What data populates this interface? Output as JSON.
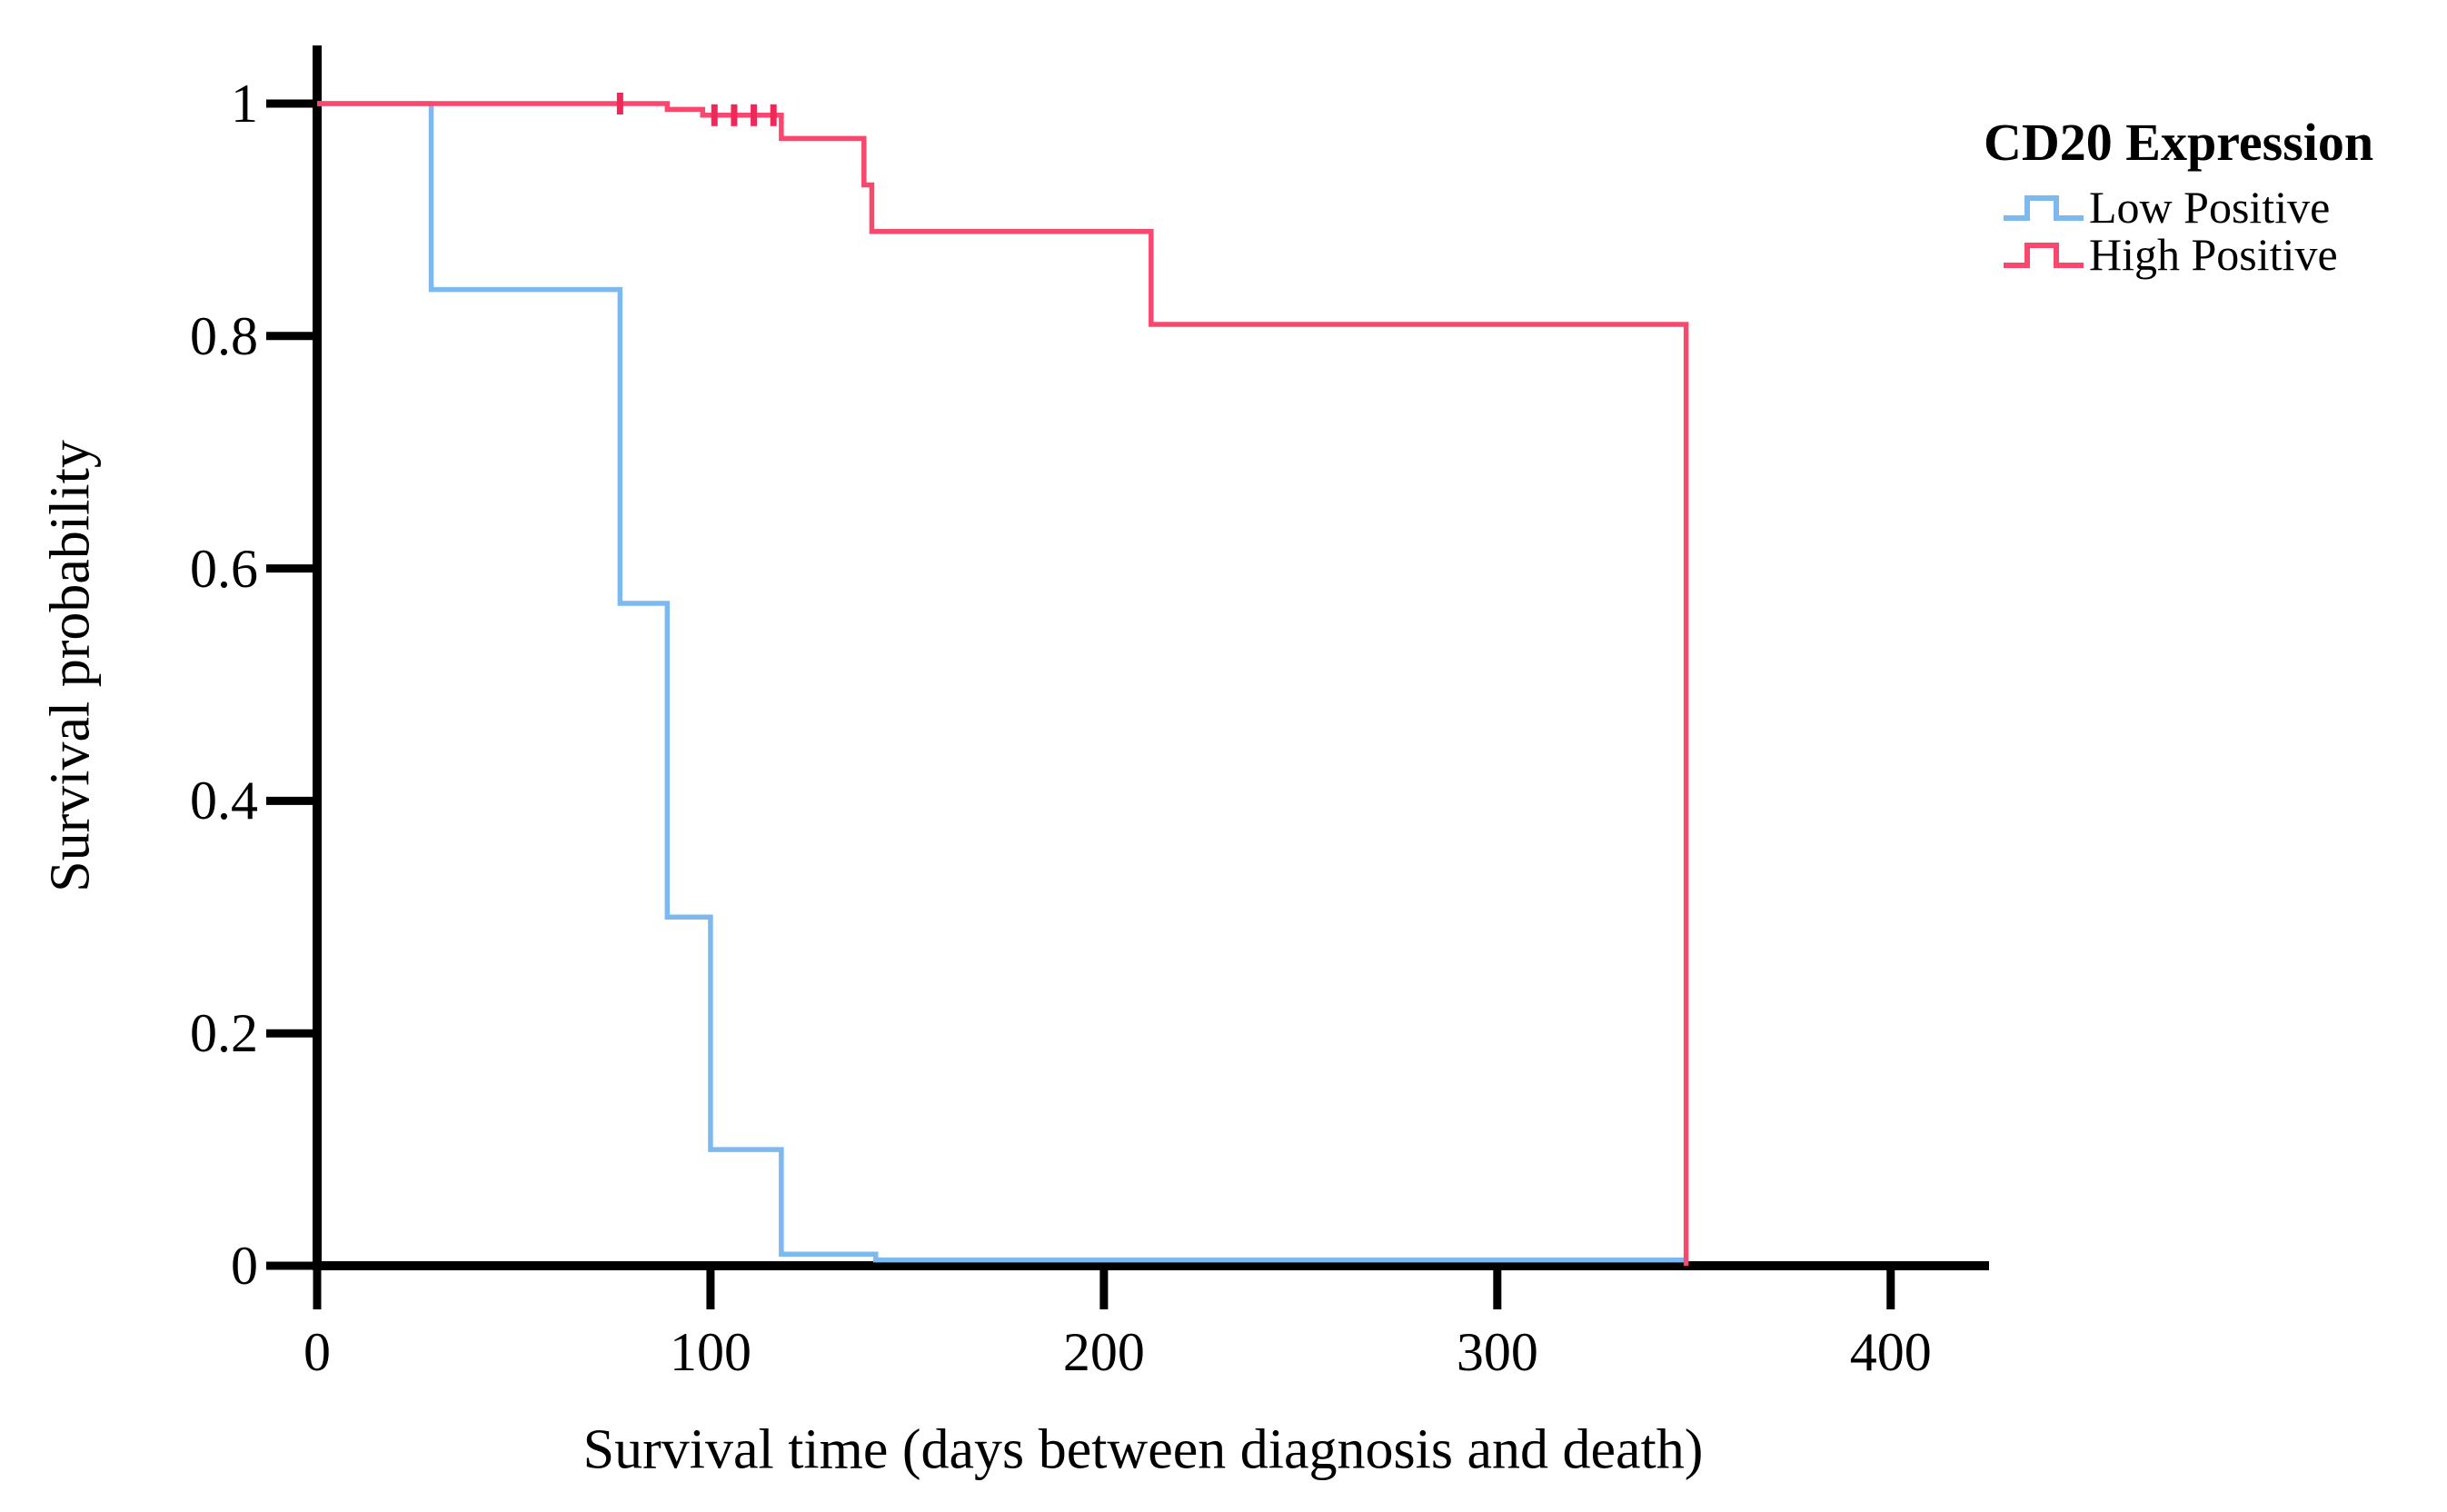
{
  "figure": {
    "background_color": "#ffffff",
    "text_color": "#000000",
    "axis_color": "#000000"
  },
  "chart_data": {
    "type": "line",
    "subtype": "kaplan-meier-step",
    "title": "",
    "xlabel": "Survival time (days between diagnosis and death)",
    "ylabel": "Survival probability",
    "xlim": [
      0,
      425
    ],
    "ylim": [
      0,
      1.05
    ],
    "xticks": [
      0,
      100,
      200,
      300,
      400
    ],
    "xtick_labels": [
      "0",
      "100",
      "200",
      "300",
      "400"
    ],
    "yticks": [
      0,
      0.2,
      0.4,
      0.6,
      0.8,
      1
    ],
    "ytick_labels": [
      "0",
      "0.2",
      "0.4",
      "0.6",
      "0.8",
      "1"
    ],
    "grid": false,
    "legend": {
      "title": "CD20 Expression",
      "position": "top-right-outside",
      "entries": [
        {
          "label": "Low Positive",
          "color": "#7db9ee"
        },
        {
          "label": "High Positive",
          "color": "#f8486e"
        }
      ]
    },
    "series": [
      {
        "name": "Low Positive",
        "color": "#7db9ee",
        "censor_color": "#5ba3e8",
        "steps": [
          [
            0,
            1.0
          ],
          [
            29,
            0.84
          ],
          [
            77,
            0.57
          ],
          [
            89,
            0.3
          ],
          [
            100,
            0.1
          ],
          [
            118,
            0.01
          ],
          [
            142,
            0.005
          ]
        ],
        "end_time": 348,
        "censor_marks": []
      },
      {
        "name": "High Positive",
        "color": "#f8486e",
        "censor_color": "#f0285a",
        "steps": [
          [
            0,
            1.0
          ],
          [
            89,
            0.995
          ],
          [
            98,
            0.99
          ],
          [
            118,
            0.97
          ],
          [
            139,
            0.93
          ],
          [
            141,
            0.89
          ],
          [
            212,
            0.81
          ],
          [
            348,
            0
          ]
        ],
        "end_time": 348,
        "censor_marks": [
          [
            77,
            1.0
          ],
          [
            101,
            0.99
          ],
          [
            106,
            0.99
          ],
          [
            111,
            0.99
          ],
          [
            116,
            0.99
          ]
        ]
      }
    ]
  }
}
